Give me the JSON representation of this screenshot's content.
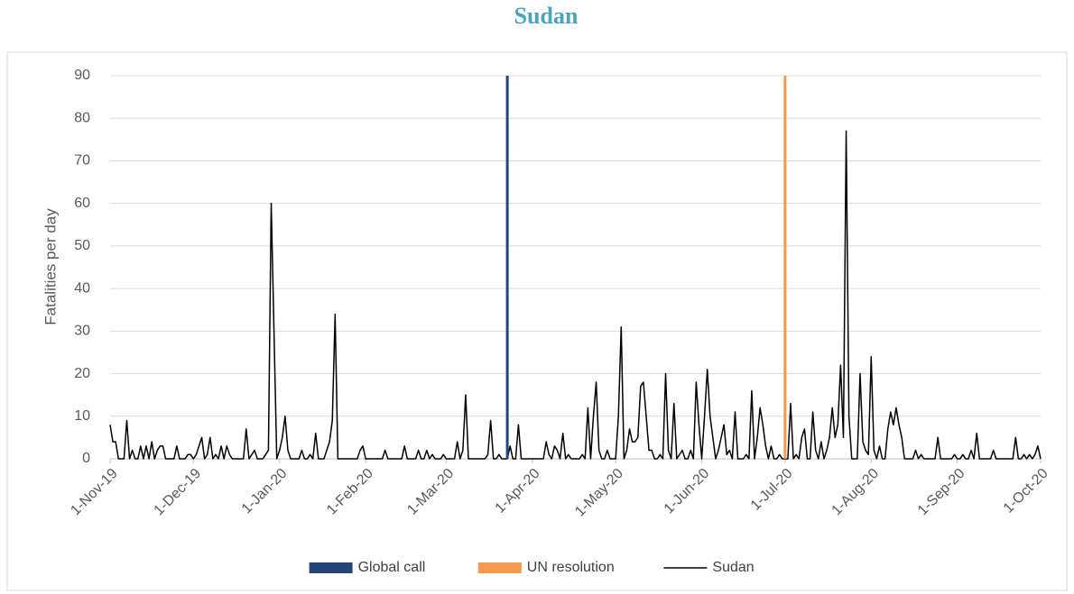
{
  "chart_data": {
    "type": "line",
    "title": "Sudan",
    "ylabel": "Fatalities per day",
    "xlim": [
      0,
      335
    ],
    "xticks": [
      {
        "value": 0,
        "label": "1-Nov-19"
      },
      {
        "value": 30,
        "label": "1-Dec-19"
      },
      {
        "value": 61,
        "label": "1-Jan-20"
      },
      {
        "value": 92,
        "label": "1-Feb-20"
      },
      {
        "value": 121,
        "label": "1-Mar-20"
      },
      {
        "value": 152,
        "label": "1-Apr-20"
      },
      {
        "value": 182,
        "label": "1-May-20"
      },
      {
        "value": 213,
        "label": "1-Jun-20"
      },
      {
        "value": 243,
        "label": "1-Jul-20"
      },
      {
        "value": 274,
        "label": "1-Aug-20"
      },
      {
        "value": 305,
        "label": "1-Sep-20"
      },
      {
        "value": 335,
        "label": "1-Oct-20"
      }
    ],
    "ylim": [
      0,
      90
    ],
    "yticks": [
      0,
      10,
      20,
      30,
      40,
      50,
      60,
      70,
      80,
      90
    ],
    "grid": true,
    "legend": "bottom",
    "series": [
      {
        "name": "Global call",
        "color": "#264478",
        "x": [
          143,
          143
        ],
        "values": [
          0,
          90
        ]
      },
      {
        "name": "UN resolution",
        "color": "#f79a4f",
        "x": [
          243,
          243
        ],
        "values": [
          0,
          90
        ]
      },
      {
        "name": "Sudan",
        "color": "#000000",
        "x": [
          0,
          1,
          2,
          3,
          4,
          5,
          6,
          7,
          8,
          9,
          10,
          11,
          12,
          13,
          14,
          15,
          16,
          17,
          18,
          19,
          20,
          21,
          22,
          23,
          24,
          25,
          26,
          27,
          28,
          29,
          30,
          31,
          32,
          33,
          34,
          35,
          36,
          37,
          38,
          39,
          40,
          41,
          42,
          43,
          44,
          45,
          46,
          47,
          48,
          49,
          50,
          51,
          52,
          53,
          54,
          55,
          56,
          57,
          58,
          59,
          60,
          61,
          62,
          63,
          64,
          65,
          66,
          67,
          68,
          69,
          70,
          71,
          72,
          73,
          74,
          75,
          76,
          77,
          78,
          79,
          80,
          81,
          82,
          83,
          84,
          85,
          86,
          87,
          88,
          89,
          90,
          91,
          92,
          93,
          94,
          95,
          96,
          97,
          98,
          99,
          100,
          101,
          102,
          103,
          104,
          105,
          106,
          107,
          108,
          109,
          110,
          111,
          112,
          113,
          114,
          115,
          116,
          117,
          118,
          119,
          120,
          121,
          122,
          123,
          124,
          125,
          126,
          127,
          128,
          129,
          130,
          131,
          132,
          133,
          134,
          135,
          136,
          137,
          138,
          139,
          140,
          141,
          142,
          143,
          144,
          145,
          146,
          147,
          148,
          149,
          150,
          151,
          152,
          153,
          154,
          155,
          156,
          157,
          158,
          159,
          160,
          161,
          162,
          163,
          164,
          165,
          166,
          167,
          168,
          169,
          170,
          171,
          172,
          173,
          174,
          175,
          176,
          177,
          178,
          179,
          180,
          181,
          182,
          183,
          184,
          185,
          186,
          187,
          188,
          189,
          190,
          191,
          192,
          193,
          194,
          195,
          196,
          197,
          198,
          199,
          200,
          201,
          202,
          203,
          204,
          205,
          206,
          207,
          208,
          209,
          210,
          211,
          212,
          213,
          214,
          215,
          216,
          217,
          218,
          219,
          220,
          221,
          222,
          223,
          224,
          225,
          226,
          227,
          228,
          229,
          230,
          231,
          232,
          233,
          234,
          235,
          236,
          237,
          238,
          239,
          240,
          241,
          242,
          243,
          244,
          245,
          246,
          247,
          248,
          249,
          250,
          251,
          252,
          253,
          254,
          255,
          256,
          257,
          258,
          259,
          260,
          261,
          262,
          263,
          264,
          265,
          266,
          267,
          268,
          269,
          270,
          271,
          272,
          273,
          274,
          275,
          276,
          277,
          278,
          279,
          280,
          281,
          282,
          283,
          284,
          285,
          286,
          287,
          288,
          289,
          290,
          291,
          292,
          293,
          294,
          295,
          296,
          297,
          298,
          299,
          300,
          301,
          302,
          303,
          304,
          305,
          306,
          307,
          308,
          309,
          310,
          311,
          312,
          313,
          314,
          315,
          316,
          317,
          318,
          319,
          320,
          321,
          322,
          323,
          324,
          325,
          326,
          327,
          328,
          329,
          330,
          331,
          332,
          333,
          334,
          335
        ],
        "values": [
          8,
          4,
          4,
          0,
          0,
          0,
          9,
          0,
          2,
          0,
          0,
          3,
          0,
          3,
          0,
          4,
          0,
          2,
          3,
          3,
          0,
          0,
          0,
          0,
          3,
          0,
          0,
          0,
          1,
          1,
          0,
          1,
          3,
          5,
          0,
          1,
          5,
          0,
          1,
          0,
          3,
          0,
          3,
          1,
          0,
          0,
          0,
          0,
          0,
          7,
          0,
          1,
          2,
          0,
          0,
          0,
          1,
          2,
          60,
          30,
          0,
          2,
          5,
          10,
          2,
          0,
          0,
          0,
          0,
          2,
          0,
          0,
          1,
          0,
          6,
          0,
          0,
          0,
          2,
          4,
          9,
          34,
          0,
          0,
          0,
          0,
          0,
          0,
          0,
          0,
          2,
          3,
          0,
          0,
          0,
          0,
          0,
          0,
          0,
          2,
          0,
          0,
          0,
          0,
          0,
          0,
          3,
          0,
          0,
          0,
          0,
          2,
          0,
          0,
          2,
          0,
          1,
          0,
          0,
          0,
          1,
          0,
          0,
          0,
          0,
          4,
          0,
          2,
          15,
          0,
          0,
          0,
          0,
          0,
          0,
          0,
          1,
          9,
          0,
          0,
          1,
          0,
          0,
          0,
          3,
          0,
          0,
          8,
          0,
          0,
          0,
          0,
          0,
          0,
          0,
          0,
          0,
          4,
          1,
          0,
          3,
          2,
          0,
          6,
          0,
          1,
          0,
          0,
          0,
          0,
          1,
          0,
          12,
          0,
          10,
          18,
          2,
          0,
          0,
          2,
          0,
          0,
          0,
          10,
          31,
          0,
          2,
          7,
          4,
          4,
          5,
          17,
          18,
          10,
          2,
          2,
          0,
          0,
          1,
          0,
          20,
          2,
          0,
          13,
          0,
          1,
          2,
          0,
          0,
          2,
          0,
          18,
          8,
          0,
          10,
          21,
          10,
          5,
          0,
          2,
          5,
          8,
          1,
          2,
          0,
          11,
          0,
          0,
          0,
          1,
          0,
          16,
          0,
          5,
          12,
          8,
          3,
          0,
          3,
          0,
          0,
          1,
          0,
          0,
          0,
          13,
          0,
          1,
          0,
          5,
          7,
          0,
          0,
          11,
          2,
          0,
          4,
          0,
          2,
          5,
          12,
          5,
          8,
          22,
          5,
          77,
          10,
          0,
          0,
          0,
          20,
          4,
          2,
          1,
          24,
          2,
          0,
          3,
          0,
          0,
          7,
          11,
          8,
          12,
          8,
          5,
          0,
          0,
          0,
          0,
          2,
          0,
          1,
          0,
          0,
          0,
          0,
          0,
          5,
          0,
          0,
          0,
          0,
          0,
          1,
          0,
          0,
          1,
          0,
          0,
          2,
          0,
          6,
          0,
          0,
          0,
          0,
          0,
          2,
          0,
          0,
          0,
          0,
          0,
          0,
          0,
          5,
          0,
          0,
          1,
          0,
          1,
          0,
          1,
          3,
          0
        ]
      }
    ]
  }
}
